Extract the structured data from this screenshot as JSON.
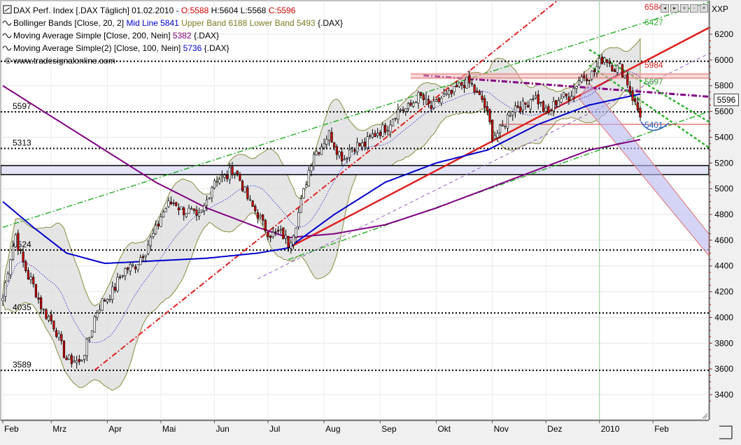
{
  "window": {
    "axis_title": "XXP"
  },
  "legend": [
    {
      "parts": [
        {
          "t": "DAX Perf. Index [.DAX  Täglich] 01.02.2010 - ",
          "c": "#000000"
        },
        {
          "t": "O:5588",
          "c": "#cc0000"
        },
        {
          "t": " H:5604 L:5568 ",
          "c": "#000000"
        },
        {
          "t": "C:5596",
          "c": "#cc0000"
        }
      ]
    },
    {
      "parts": [
        {
          "t": "Bollinger Bands [Close, 20, 2] ",
          "c": "#000000"
        },
        {
          "t": "Mid Line 5841",
          "c": "#0000cc"
        },
        {
          "t": " ",
          "c": "#000000"
        },
        {
          "t": "Upper Band 6188 Lower Band 5493",
          "c": "#7a7a20"
        },
        {
          "t": " {.DAX}",
          "c": "#000000"
        }
      ]
    },
    {
      "parts": [
        {
          "t": "Moving Average Simple [Close, 200, Nein] ",
          "c": "#000000"
        },
        {
          "t": "5382",
          "c": "#800080"
        },
        {
          "t": " {.DAX}",
          "c": "#000000"
        }
      ]
    },
    {
      "parts": [
        {
          "t": "Moving Average Simple(2) [Close, 100, Nein] ",
          "c": "#000000"
        },
        {
          "t": "5736",
          "c": "#0000cc"
        },
        {
          "t": " {.DAX}",
          "c": "#000000"
        }
      ]
    }
  ],
  "watermark": "© www.tradesignalonline.com",
  "current_price": "5596",
  "colors": {
    "bollinger_fill": "#dcdcdc",
    "bollinger_edge": "#8a8a40",
    "mid": "#0000cc",
    "ma100": "#0000cc",
    "ma200": "#800080",
    "up": "#ffffff",
    "down": "#cc0000",
    "wick": "#000000"
  },
  "chart_data": {
    "type": "line",
    "y_ticks": [
      "3400",
      "3600",
      "3800",
      "4000",
      "4200",
      "4400",
      "4600",
      "4800",
      "5000",
      "5200",
      "5400",
      "5600",
      "5800",
      "6000",
      "6200"
    ],
    "ylim": [
      3300,
      6300
    ],
    "x_labels": [
      "Feb",
      "Mrz",
      "Apr",
      "Mai",
      "Jun",
      "Jul",
      "Aug",
      "Sep",
      "Okt",
      "Nov",
      "Dez",
      "2010",
      "Feb"
    ],
    "price_anchors": [
      [
        0,
        4150
      ],
      [
        5,
        4650
      ],
      [
        10,
        4300
      ],
      [
        18,
        4000
      ],
      [
        25,
        3700
      ],
      [
        30,
        3620
      ],
      [
        36,
        4000
      ],
      [
        42,
        4200
      ],
      [
        50,
        4400
      ],
      [
        56,
        4500
      ],
      [
        62,
        4800
      ],
      [
        68,
        4900
      ],
      [
        76,
        4750
      ],
      [
        83,
        5050
      ],
      [
        90,
        5150
      ],
      [
        96,
        4950
      ],
      [
        102,
        4700
      ],
      [
        108,
        4650
      ],
      [
        112,
        4570
      ],
      [
        118,
        4950
      ],
      [
        122,
        5300
      ],
      [
        128,
        5400
      ],
      [
        134,
        5250
      ],
      [
        140,
        5350
      ],
      [
        146,
        5400
      ],
      [
        150,
        5500
      ],
      [
        156,
        5600
      ],
      [
        162,
        5700
      ],
      [
        168,
        5650
      ],
      [
        174,
        5700
      ],
      [
        178,
        5800
      ],
      [
        184,
        5800
      ],
      [
        188,
        5700
      ],
      [
        192,
        5400
      ],
      [
        196,
        5500
      ],
      [
        202,
        5650
      ],
      [
        208,
        5700
      ],
      [
        214,
        5600
      ],
      [
        222,
        5750
      ],
      [
        230,
        5900
      ],
      [
        236,
        6000
      ],
      [
        242,
        5950
      ],
      [
        246,
        5750
      ],
      [
        250,
        5600
      ]
    ],
    "ma200_anchors": [
      [
        0,
        5800
      ],
      [
        20,
        5550
      ],
      [
        40,
        5300
      ],
      [
        60,
        5050
      ],
      [
        80,
        4850
      ],
      [
        100,
        4700
      ],
      [
        112,
        4620
      ],
      [
        130,
        4650
      ],
      [
        150,
        4720
      ],
      [
        170,
        4850
      ],
      [
        190,
        5000
      ],
      [
        210,
        5150
      ],
      [
        230,
        5300
      ],
      [
        250,
        5382
      ]
    ],
    "ma100_anchors": [
      [
        0,
        4900
      ],
      [
        12,
        4700
      ],
      [
        25,
        4500
      ],
      [
        40,
        4420
      ],
      [
        60,
        4440
      ],
      [
        80,
        4460
      ],
      [
        100,
        4500
      ],
      [
        112,
        4540
      ],
      [
        130,
        4800
      ],
      [
        150,
        5050
      ],
      [
        170,
        5200
      ],
      [
        190,
        5300
      ],
      [
        210,
        5500
      ],
      [
        230,
        5650
      ],
      [
        250,
        5736
      ]
    ],
    "levels": [
      {
        "label": "5597",
        "value": 5597,
        "style": "dotted"
      },
      {
        "label": "5313",
        "value": 5313,
        "style": "dotted"
      },
      {
        "label": "4524",
        "value": 4524,
        "style": "dotted"
      },
      {
        "label": "4035",
        "value": 4035,
        "style": "dotted"
      },
      {
        "label": "3589",
        "value": 3589,
        "style": "dotted"
      },
      {
        "label": "",
        "value": 5990,
        "style": "dotted"
      }
    ],
    "support_band": [
      5110,
      5180
    ],
    "trend_annotations": [
      {
        "label": "6584",
        "color": "#dd2020"
      },
      {
        "label": "6427",
        "color": "#30b030"
      },
      {
        "label": "5984",
        "color": "#dd2020"
      },
      {
        "label": "5697",
        "color": "#30a030"
      },
      {
        "label": "5401",
        "color": "#2060c0"
      }
    ]
  }
}
